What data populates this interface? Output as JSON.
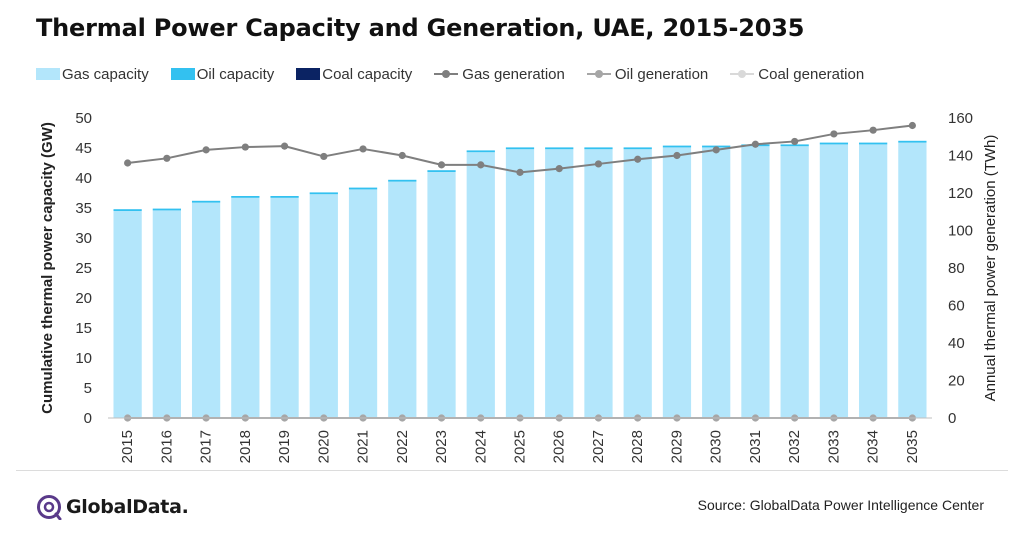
{
  "title": "Thermal Power Capacity and Generation, UAE, 2015-2035",
  "source": "Source: GlobalData Power Intelligence Center",
  "brand": "GlobalData.",
  "colors": {
    "gas_capacity": "#b3e6fb",
    "oil_capacity": "#33c1f0",
    "coal_capacity": "#0b2363",
    "gas_generation": "#7f7f7f",
    "oil_generation": "#a6a6a6",
    "coal_generation": "#d9d9d9",
    "logo": "#5a3a8a"
  },
  "legend": [
    {
      "label": "Gas capacity",
      "kind": "bar",
      "color_key": "gas_capacity"
    },
    {
      "label": "Oil capacity",
      "kind": "bar",
      "color_key": "oil_capacity"
    },
    {
      "label": "Coal capacity",
      "kind": "bar",
      "color_key": "coal_capacity"
    },
    {
      "label": "Gas generation",
      "kind": "line",
      "color_key": "gas_generation"
    },
    {
      "label": "Oil generation",
      "kind": "line",
      "color_key": "oil_generation"
    },
    {
      "label": "Coal generation",
      "kind": "line",
      "color_key": "coal_generation"
    }
  ],
  "chart_data": {
    "type": "bar",
    "title": "Thermal Power Capacity and Generation, UAE, 2015-2035",
    "categories": [
      "2015",
      "2016",
      "2017",
      "2018",
      "2019",
      "2020",
      "2021",
      "2022",
      "2023",
      "2024",
      "2025",
      "2026",
      "2027",
      "2028",
      "2029",
      "2030",
      "2031",
      "2032",
      "2033",
      "2034",
      "2035"
    ],
    "ylabel": "Cumulative thermal power capacity (GW)",
    "y2label": "Annual thermal power generation (TWh)",
    "ylim": [
      0,
      50
    ],
    "y2lim": [
      0,
      160
    ],
    "yticks": [
      0,
      5,
      10,
      15,
      20,
      25,
      30,
      35,
      40,
      45,
      50
    ],
    "y2ticks": [
      0,
      20,
      40,
      60,
      80,
      100,
      120,
      140,
      160
    ],
    "grid": false,
    "legend_position": "top",
    "bar_series": [
      {
        "name": "Gas capacity",
        "color_key": "gas_capacity",
        "values": [
          34.5,
          34.6,
          35.9,
          36.7,
          36.7,
          37.3,
          38.1,
          39.4,
          41.0,
          44.3,
          44.8,
          44.8,
          44.8,
          44.8,
          45.1,
          45.1,
          45.3,
          45.3,
          45.6,
          45.6,
          45.9
        ]
      },
      {
        "name": "Oil capacity",
        "color_key": "oil_capacity",
        "values": [
          0.3,
          0.3,
          0.3,
          0.3,
          0.3,
          0.3,
          0.3,
          0.3,
          0.3,
          0.3,
          0.3,
          0.3,
          0.3,
          0.3,
          0.3,
          0.3,
          0.3,
          0.3,
          0.3,
          0.3,
          0.3
        ]
      },
      {
        "name": "Coal capacity",
        "color_key": "coal_capacity",
        "values": [
          0,
          0,
          0,
          0,
          0,
          0,
          0,
          0,
          0,
          0,
          0,
          0,
          0,
          0,
          0,
          0,
          0,
          0,
          0,
          0,
          0
        ]
      }
    ],
    "line_series": [
      {
        "name": "Gas generation",
        "color_key": "gas_generation",
        "axis": "right",
        "values": [
          136,
          138.5,
          143,
          144.5,
          145,
          139.5,
          143.5,
          140,
          135,
          135,
          131,
          133,
          135.5,
          138,
          140,
          143,
          146,
          147.5,
          151.5,
          153.5,
          156
        ]
      },
      {
        "name": "Oil generation",
        "color_key": "oil_generation",
        "axis": "right",
        "values": [
          0,
          0,
          0,
          0,
          0,
          0,
          0,
          0,
          0,
          0,
          0,
          0,
          0,
          0,
          0,
          0,
          0,
          0,
          0,
          0,
          0
        ]
      },
      {
        "name": "Coal generation",
        "color_key": "coal_generation",
        "axis": "right",
        "values": [
          0,
          0,
          0,
          0,
          0,
          0,
          0,
          0,
          0,
          0,
          0,
          0,
          0,
          0,
          0,
          0,
          0,
          0,
          0,
          0,
          0
        ]
      }
    ]
  }
}
